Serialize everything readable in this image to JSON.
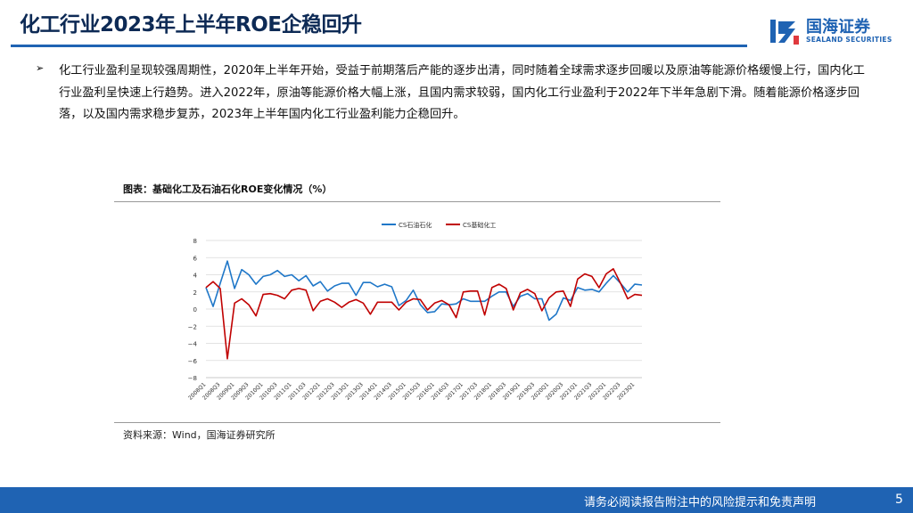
{
  "header": {
    "title": "化工行业2023年上半年ROE企稳回升",
    "logo_cn": "国海证券",
    "logo_en": "SEALAND SECURITIES"
  },
  "content": {
    "bullet_text": "化工行业盈利呈现较强周期性，2020年上半年开始，受益于前期落后产能的逐步出清，同时随着全球需求逐步回暖以及原油等能源价格缓慢上行，国内化工行业盈利呈快速上行趋势。进入2022年，原油等能源价格大幅上涨，且国内需求较弱，国内化工行业盈利于2022年下半年急剧下滑。随着能源价格逐步回落，以及国内需求稳步复苏，2023年上半年国内化工行业盈利能力企稳回升。"
  },
  "chart": {
    "title": "图表：基础化工及石油石化ROE变化情况（%）",
    "source": "资料来源：Wind，国海证券研究所"
  },
  "footer": {
    "disclaimer": "请务必阅读报告附注中的风险提示和免责声明",
    "page_number": "5"
  },
  "colors": {
    "brand_blue": "#1f63b3",
    "series_blue": "#1f77c8",
    "series_red": "#c00000"
  },
  "chart_data": {
    "type": "line",
    "ylim": [
      -8,
      8
    ],
    "yticks": [
      8,
      6,
      4,
      2,
      0,
      -2,
      -4,
      -6,
      -8
    ],
    "xtick_labels": [
      "2008Q1",
      "2008Q3",
      "2009Q1",
      "2009Q3",
      "2010Q1",
      "2010Q3",
      "2011Q1",
      "2011Q3",
      "2012Q1",
      "2012Q3",
      "2013Q1",
      "2013Q3",
      "2014Q1",
      "2014Q3",
      "2015Q1",
      "2015Q3",
      "2016Q1",
      "2016Q3",
      "2017Q1",
      "2017Q3",
      "2018Q1",
      "2018Q3",
      "2019Q1",
      "2019Q3",
      "2020Q1",
      "2020Q3",
      "2021Q1",
      "2021Q3",
      "2022Q1",
      "2022Q3",
      "2023Q1"
    ],
    "legend_position": "top",
    "grid": true,
    "series": [
      {
        "name": "CS石油石化",
        "color": "#1f77c8",
        "values": [
          2.5,
          0.3,
          3.0,
          5.6,
          2.4,
          4.6,
          4.0,
          2.9,
          3.8,
          4.0,
          4.5,
          3.8,
          4.0,
          3.3,
          3.9,
          2.7,
          3.2,
          2.1,
          2.7,
          3.0,
          3.0,
          1.6,
          3.1,
          3.1,
          2.6,
          2.9,
          2.6,
          0.4,
          1.0,
          2.2,
          0.5,
          -0.4,
          -0.3,
          0.6,
          0.5,
          0.6,
          1.2,
          0.9,
          0.9,
          0.9,
          1.5,
          2.0,
          2.0,
          0.3,
          1.5,
          1.8,
          1.2,
          1.2,
          -1.3,
          -0.6,
          1.3,
          1.0,
          2.5,
          2.2,
          2.3,
          2.0,
          3.0,
          3.9,
          3.0,
          2.0,
          2.9,
          2.8
        ]
      },
      {
        "name": "CS基础化工",
        "color": "#c00000",
        "values": [
          2.5,
          3.2,
          2.4,
          -5.8,
          0.7,
          1.2,
          0.5,
          -0.8,
          1.7,
          1.8,
          1.6,
          1.2,
          2.2,
          2.4,
          2.2,
          -0.2,
          0.9,
          1.2,
          0.8,
          0.2,
          0.8,
          1.1,
          0.7,
          -0.6,
          0.8,
          0.8,
          0.8,
          -0.1,
          0.8,
          1.2,
          1.1,
          -0.1,
          0.7,
          1.0,
          0.5,
          -1.0,
          2.0,
          2.1,
          2.1,
          -0.7,
          2.5,
          2.9,
          2.4,
          -0.1,
          1.9,
          2.3,
          1.8,
          -0.2,
          1.3,
          2.0,
          2.1,
          0.3,
          3.5,
          4.1,
          3.8,
          2.5,
          4.1,
          4.7,
          3.0,
          1.2,
          1.7,
          1.6
        ]
      }
    ]
  }
}
